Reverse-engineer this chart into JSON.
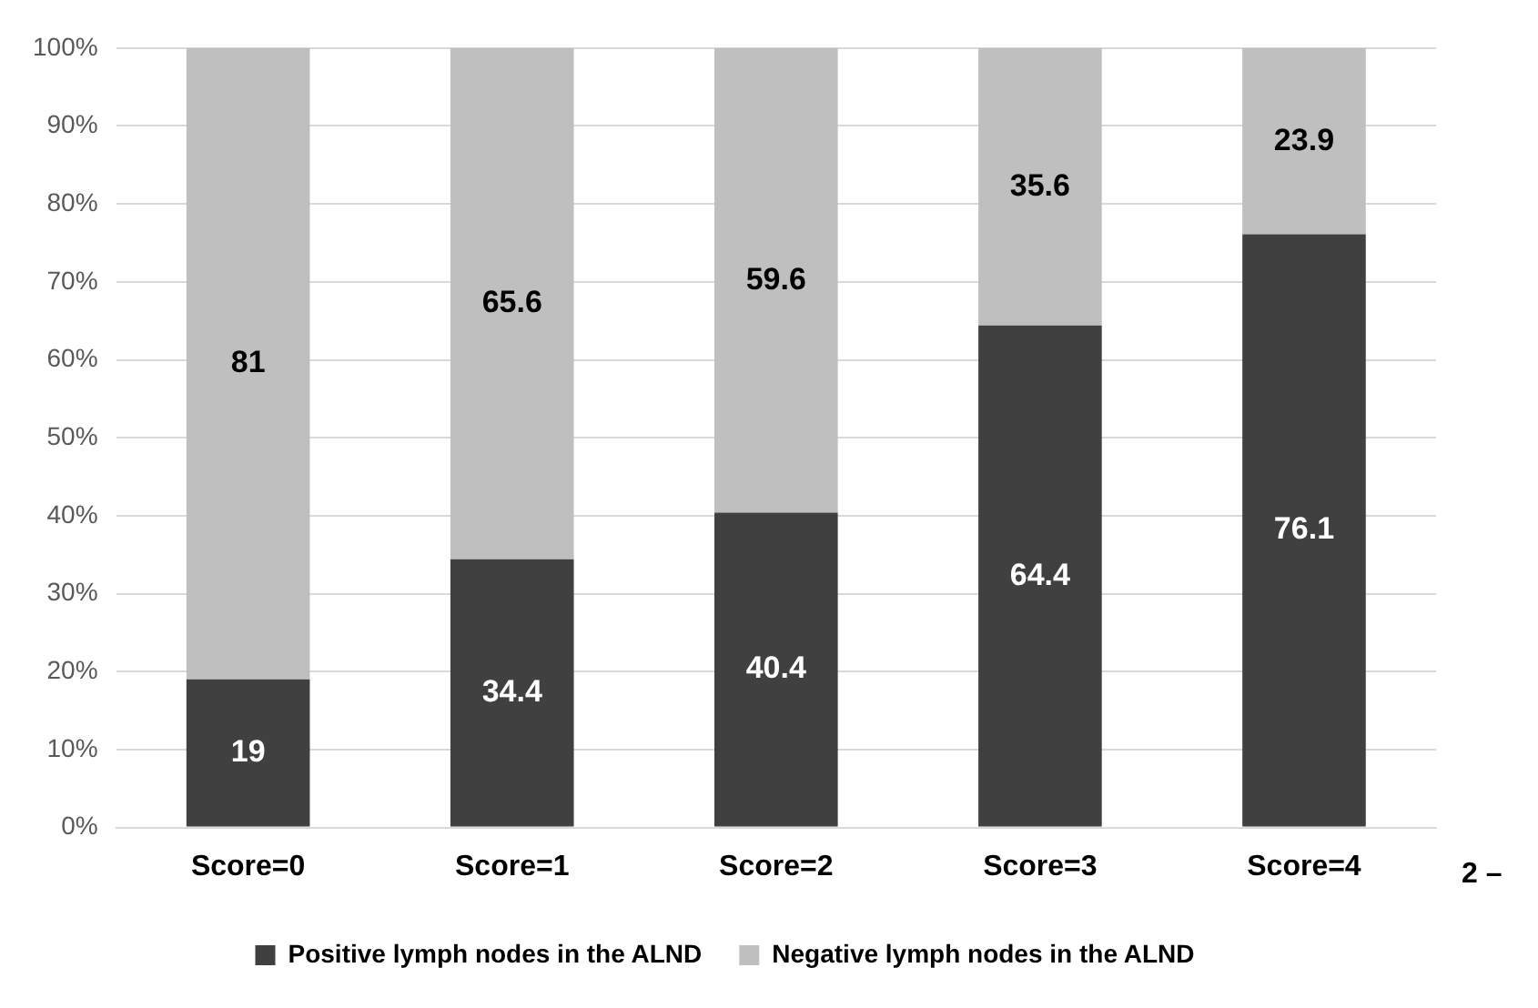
{
  "chart_data": {
    "type": "bar",
    "stacked": true,
    "categories": [
      "Score=0",
      "Score=1",
      "Score=2",
      "Score=3",
      "Score=4"
    ],
    "series": [
      {
        "name": "Positive lymph nodes in the ALND",
        "color": "#404040",
        "values": [
          19,
          34.4,
          40.4,
          64.4,
          76.1
        ]
      },
      {
        "name": "Negative lymph nodes in the ALND",
        "color": "#bfbfbf",
        "values": [
          81,
          65.6,
          59.6,
          35.6,
          23.9
        ]
      }
    ],
    "ylim": [
      0,
      100
    ],
    "yticks": [
      {
        "value": 0,
        "label": "0%"
      },
      {
        "value": 10,
        "label": "10%"
      },
      {
        "value": 20,
        "label": "20%"
      },
      {
        "value": 30,
        "label": "30%"
      },
      {
        "value": 40,
        "label": "40%"
      },
      {
        "value": 50,
        "label": "50%"
      },
      {
        "value": 60,
        "label": "60%"
      },
      {
        "value": 70,
        "label": "70%"
      },
      {
        "value": 80,
        "label": "80%"
      },
      {
        "value": 90,
        "label": "90%"
      },
      {
        "value": 100,
        "label": "100%"
      }
    ],
    "grid": "y",
    "legend": "bottom",
    "data_labels": true,
    "annotations": [
      "2 –"
    ]
  }
}
